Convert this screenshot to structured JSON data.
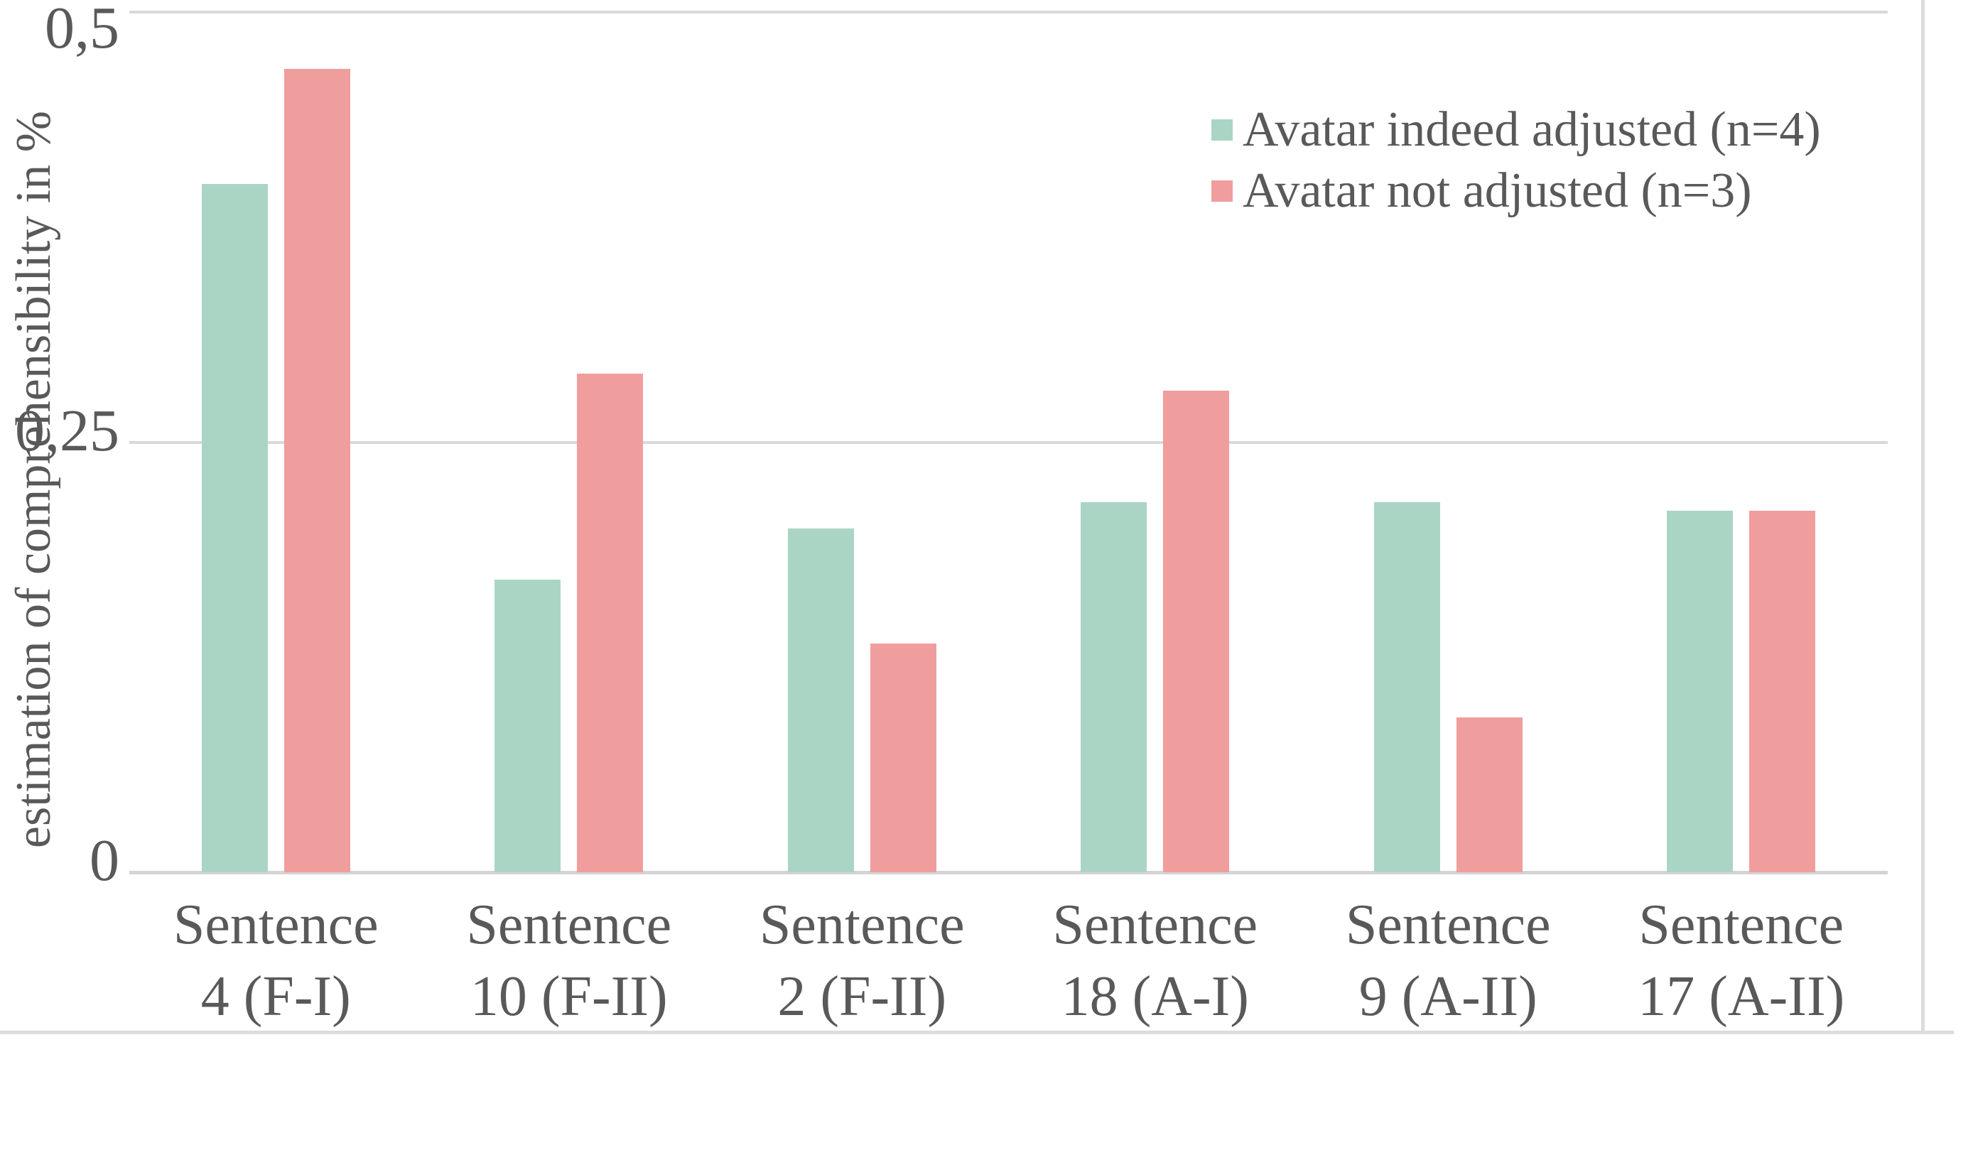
{
  "chart_data": {
    "type": "bar",
    "title": "",
    "xlabel": "",
    "ylabel": "estimation of comprehensibility in %",
    "ylim": [
      0,
      0.5
    ],
    "grid": "horizontal",
    "legend_position": "top-right",
    "decimal_separator": ",",
    "yticks": [
      {
        "value": 0.5,
        "label": "0,5"
      },
      {
        "value": 0.25,
        "label": "0,25"
      },
      {
        "value": 0,
        "label": "0"
      }
    ],
    "categories": [
      {
        "line1": "Sentence",
        "line2": "4 (F-I)"
      },
      {
        "line1": "Sentence",
        "line2": "10 (F-II)"
      },
      {
        "line1": "Sentence",
        "line2": "2 (F-II)"
      },
      {
        "line1": "Sentence",
        "line2": "18 (A-I)"
      },
      {
        "line1": "Sentence",
        "line2": "9 (A-II)"
      },
      {
        "line1": "Sentence",
        "line2": "17 (A-II)"
      }
    ],
    "series": [
      {
        "name": "Avatar indeed adjusted (n=4)",
        "color": "#aad5c5",
        "values": [
          0.4,
          0.17,
          0.2,
          0.215,
          0.215,
          0.21
        ]
      },
      {
        "name": "Avatar not adjusted (n=3)",
        "color": "#f09d9d",
        "values": [
          0.467,
          0.29,
          0.133,
          0.28,
          0.09,
          0.21
        ]
      }
    ],
    "colors": {
      "gridline": "#d9d9d9",
      "axis_line": "#d4d4d4",
      "text": "#595959",
      "frame_border": "#dcdcdc"
    }
  }
}
